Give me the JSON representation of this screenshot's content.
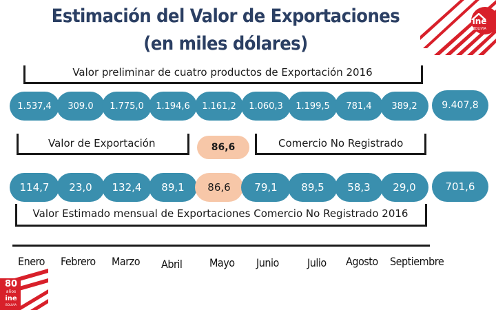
{
  "title": {
    "line1": "Estimación del Valor de Exportaciones",
    "line2": "(en miles dólares)"
  },
  "logo_top": {
    "name": "ine",
    "sub": "BOLIVIA"
  },
  "logo_bottom": {
    "line1": "80",
    "line2": "años",
    "line3": "ine",
    "line4": "BOLIVIA"
  },
  "section1": {
    "label": "Valor preliminar  de cuatro productos de Exportación 2016",
    "values": [
      "1.537,4",
      "309.0",
      "1.775,0",
      "1.194,6",
      "1.161,2",
      "1.060,3",
      "1.199,5",
      "781,4",
      "389,2"
    ],
    "total": "9.407,8"
  },
  "section2": {
    "left_label": "Valor de Exportación",
    "highlight": "86,6",
    "right_label": "Comercio No Registrado"
  },
  "section3": {
    "values": [
      "114,7",
      "23,0",
      "132,4",
      "89,1",
      "86,6",
      "79,1",
      "89,5",
      "58,3",
      "29,0"
    ],
    "highlight_index": 4,
    "total": "701,6",
    "label": "Valor Estimado mensual de Exportaciones Comercio No Registrado 2016"
  },
  "months": [
    "Enero",
    "Febrero",
    "Marzo",
    "Abril",
    "Mayo",
    "Junio",
    "Julio",
    "Agosto",
    "Septiembre"
  ],
  "colors": {
    "pill": "#3a8fae",
    "highlight": "#f7c7a8",
    "title": "#2b3f63",
    "logo_red": "#d8202a"
  }
}
